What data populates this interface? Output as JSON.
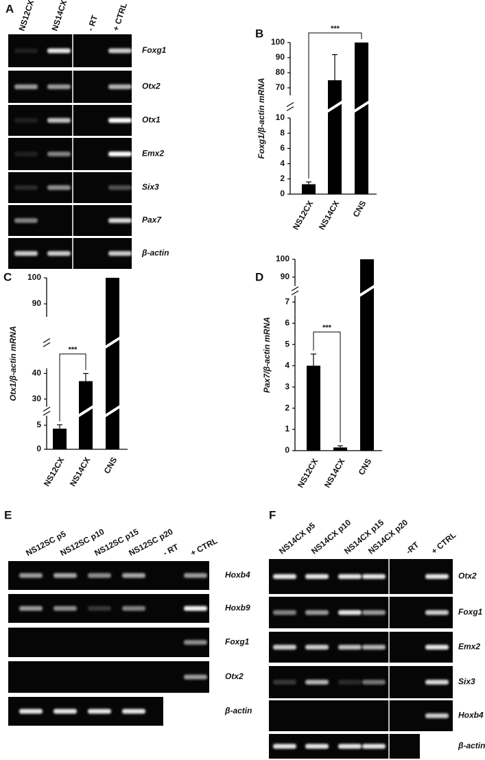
{
  "gels": [
    {
      "label": "A",
      "lanes": [
        "NS12CX",
        "NS14CX",
        "- RT",
        "+ CTRL"
      ],
      "genes": [
        "Foxg1",
        "Otx2",
        "Otx1",
        "Emx2",
        "Six3",
        "Pax7",
        "β-actin"
      ]
    },
    {
      "label": "E",
      "lanes": [
        "NS12SC p5",
        "NS12SC p10",
        "NS12SC p15",
        "NS12SC p20",
        "- RT",
        "+ CTRL"
      ],
      "genes": [
        "Hoxb4",
        "Hoxb9",
        "Foxg1",
        "Otx2",
        "β-actin"
      ]
    },
    {
      "label": "F",
      "lanes": [
        "NS14CX p5",
        "NS14CX p10",
        "NS14CX p15",
        "NS14CX p20",
        "-RT",
        "+ CTRL"
      ],
      "genes": [
        "Otx2",
        "Foxg1",
        "Emx2",
        "Six3",
        "Hoxb4",
        "β-actin"
      ]
    }
  ],
  "chart_data": [
    {
      "type": "bar",
      "label": "B",
      "y_label": "Foxg1/β-actin mRNA",
      "color": "#000000",
      "categories": [
        "NS12CX",
        "NS14CX",
        "CNS"
      ],
      "values": [
        1.3,
        75,
        100
      ],
      "errors": [
        0.3,
        17,
        null
      ],
      "segments": [
        {
          "ylim": [
            0,
            10
          ],
          "yticks": [
            0,
            2,
            4,
            6,
            8,
            10
          ]
        },
        {
          "ylim": [
            65,
            100
          ],
          "yticks": [
            70,
            80,
            90,
            100
          ]
        }
      ],
      "significance": {
        "text": "***",
        "from": 0,
        "to": 2
      }
    },
    {
      "type": "bar",
      "label": "C",
      "y_label": "Otx1/β-actin mRNA",
      "color": "#000000",
      "categories": [
        "NS12CX",
        "NS14CX",
        "CNS"
      ],
      "values": [
        4.3,
        37,
        100
      ],
      "errors": [
        0.8,
        3,
        null
      ],
      "segments": [
        {
          "ylim": [
            0,
            7
          ],
          "yticks": [
            0,
            5
          ]
        },
        {
          "ylim": [
            27,
            42
          ],
          "yticks": [
            30,
            40
          ]
        },
        {
          "ylim": [
            85,
            100
          ],
          "yticks": [
            90,
            100
          ]
        }
      ],
      "significance": {
        "text": "***",
        "from": 0,
        "to": 1
      }
    },
    {
      "type": "bar",
      "label": "D",
      "y_label": "Pax7/β-actin mRNA",
      "color": "#000000",
      "categories": [
        "NS12CX",
        "NS14CX",
        "CNS"
      ],
      "values": [
        4,
        0.15,
        100
      ],
      "errors": [
        0.55,
        0.08,
        null
      ],
      "segments": [
        {
          "ylim": [
            0,
            7.3
          ],
          "yticks": [
            0,
            1,
            2,
            3,
            4,
            5,
            6,
            7
          ]
        },
        {
          "ylim": [
            85,
            100
          ],
          "yticks": [
            90,
            100
          ]
        }
      ],
      "significance": {
        "text": "***",
        "from": 0,
        "to": 1
      }
    }
  ]
}
